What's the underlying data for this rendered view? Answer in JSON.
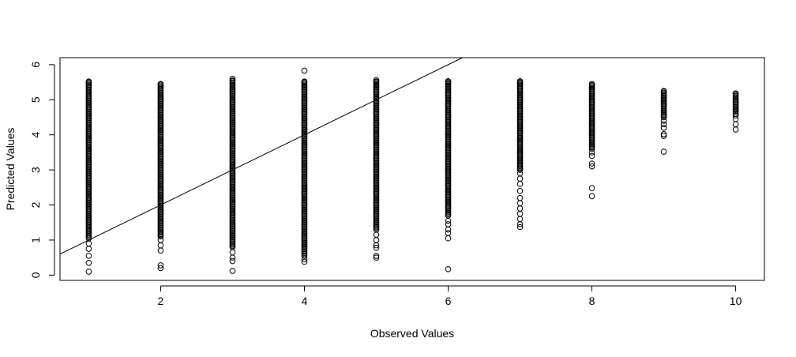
{
  "chart_data": {
    "type": "scatter",
    "title": "",
    "xlabel": "Observed Values",
    "ylabel": "Predicted Values",
    "xlim": [
      0.6,
      10.4
    ],
    "ylim": [
      -0.15,
      6.2
    ],
    "x_ticks": [
      2,
      4,
      6,
      8,
      10
    ],
    "x_tick_labels": [
      "2",
      "4",
      "6",
      "8",
      "10"
    ],
    "y_ticks": [
      0,
      1,
      2,
      3,
      4,
      5,
      6
    ],
    "y_tick_labels": [
      "0",
      "1",
      "2",
      "3",
      "4",
      "5",
      "6"
    ],
    "grid": false,
    "legend": "none",
    "reference_line": {
      "label": "y = x",
      "intercept": 0,
      "slope": 1
    },
    "dense_columns": [
      {
        "x": 1,
        "from": 1.05,
        "to": 5.52
      },
      {
        "x": 2,
        "from": 1.1,
        "to": 5.45
      },
      {
        "x": 3,
        "from": 0.8,
        "to": 5.55
      },
      {
        "x": 4,
        "from": 0.6,
        "to": 5.52
      },
      {
        "x": 5,
        "from": 1.3,
        "to": 5.52
      },
      {
        "x": 6,
        "from": 1.7,
        "to": 5.5
      },
      {
        "x": 7,
        "from": 3.0,
        "to": 5.5
      },
      {
        "x": 8,
        "from": 3.6,
        "to": 5.45
      },
      {
        "x": 9,
        "from": 4.5,
        "to": 5.25
      },
      {
        "x": 10,
        "from": 4.65,
        "to": 5.18
      }
    ],
    "outliers": [
      {
        "x": 1,
        "y": [
          0.1,
          0.35,
          0.55,
          0.75,
          0.9
        ]
      },
      {
        "x": 2,
        "y": [
          0.2,
          0.28,
          0.7,
          0.85,
          1.0
        ]
      },
      {
        "x": 3,
        "y": [
          0.12,
          0.4,
          0.5,
          0.65,
          5.6
        ]
      },
      {
        "x": 4,
        "y": [
          0.38,
          0.45,
          0.55,
          5.83
        ]
      },
      {
        "x": 5,
        "y": [
          0.5,
          0.55,
          0.78,
          0.85,
          1.0,
          1.15,
          5.56
        ]
      },
      {
        "x": 6,
        "y": [
          0.17,
          1.05,
          1.2,
          1.3,
          1.45,
          1.55,
          5.53
        ]
      },
      {
        "x": 7,
        "y": [
          1.37,
          1.45,
          1.6,
          1.75,
          1.9,
          2.05,
          2.2,
          2.4,
          2.6,
          2.75,
          2.9,
          5.53
        ]
      },
      {
        "x": 8,
        "y": [
          2.25,
          2.48,
          3.1,
          3.18,
          3.4,
          3.5
        ]
      },
      {
        "x": 9,
        "y": [
          3.52,
          3.97,
          4.02,
          4.2,
          4.3,
          4.4
        ]
      },
      {
        "x": 10,
        "y": [
          4.15,
          4.3,
          4.45,
          4.55,
          4.6
        ]
      }
    ]
  }
}
